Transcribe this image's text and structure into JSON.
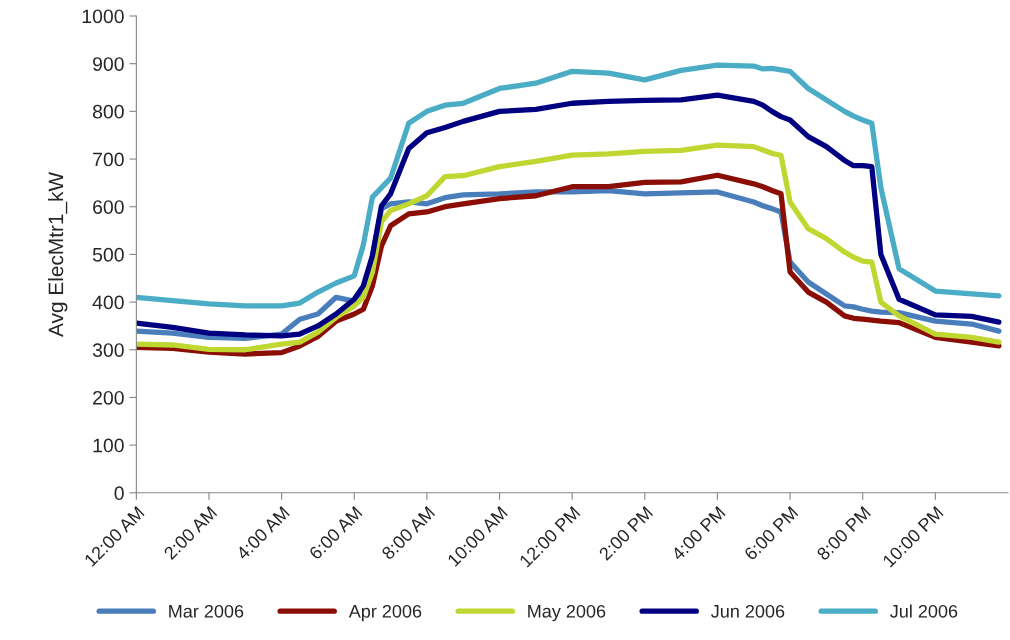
{
  "chart_data": {
    "type": "line",
    "ylabel": "Avg ElecMtr1_kW",
    "x": [
      0,
      1,
      2,
      3,
      4,
      4.5,
      5,
      5.5,
      6,
      6.25,
      6.5,
      6.75,
      7,
      7.5,
      8,
      8.5,
      9,
      10,
      11,
      12,
      13,
      14,
      15,
      16,
      17,
      17.25,
      17.5,
      17.75,
      18,
      18.5,
      19,
      19.5,
      19.75,
      20,
      20.25,
      20.5,
      21,
      22,
      23,
      23.75
    ],
    "series": [
      {
        "name": "Mar 2006",
        "color": "#4a7ebb",
        "values": [
          339,
          335,
          326,
          324,
          333,
          364,
          375,
          410,
          402,
          421,
          497,
          596,
          606,
          610,
          606,
          619,
          625,
          627,
          631,
          631,
          634,
          627,
          629,
          631,
          610,
          602,
          596,
          589,
          484,
          442,
          417,
          392,
          390,
          385,
          381,
          379,
          378,
          360,
          354,
          339
        ]
      },
      {
        "name": "Apr 2006",
        "color": "#8b0e04",
        "values": [
          305,
          303,
          295,
          291,
          294,
          308,
          328,
          360,
          375,
          385,
          434,
          518,
          560,
          585,
          589,
          600,
          606,
          617,
          623,
          642,
          642,
          651,
          652,
          666,
          648,
          642,
          634,
          627,
          463,
          421,
          400,
          371,
          366,
          364,
          362,
          360,
          357,
          326,
          316,
          308
        ]
      },
      {
        "name": "May 2006",
        "color": "#bfd730",
        "values": [
          312,
          310,
          301,
          300,
          312,
          316,
          337,
          368,
          392,
          410,
          463,
          568,
          592,
          606,
          623,
          663,
          665,
          684,
          695,
          708,
          711,
          716,
          718,
          729,
          726,
          719,
          712,
          708,
          610,
          554,
          533,
          505,
          494,
          486,
          484,
          400,
          371,
          333,
          326,
          316
        ]
      },
      {
        "name": "Jun 2006",
        "color": "#000080",
        "values": [
          356,
          347,
          335,
          331,
          329,
          333,
          350,
          375,
          406,
          434,
          497,
          602,
          627,
          722,
          755,
          766,
          779,
          800,
          804,
          817,
          821,
          823,
          824,
          834,
          821,
          813,
          800,
          789,
          782,
          747,
          726,
          697,
          686,
          686,
          684,
          500,
          406,
          373,
          370,
          358
        ]
      },
      {
        "name": "Jul 2006",
        "color": "#4bacc6",
        "values": [
          410,
          403,
          396,
          392,
          392,
          398,
          421,
          440,
          455,
          520,
          620,
          640,
          660,
          775,
          800,
          813,
          817,
          848,
          859,
          884,
          880,
          866,
          886,
          897,
          895,
          889,
          890,
          887,
          884,
          848,
          824,
          800,
          790,
          782,
          775,
          640,
          470,
          423,
          417,
          413
        ]
      }
    ],
    "xlim": [
      0,
      24
    ],
    "xticks": [
      {
        "value": 0,
        "label": "12:00 AM"
      },
      {
        "value": 2,
        "label": "2:00 AM"
      },
      {
        "value": 4,
        "label": "4:00 AM"
      },
      {
        "value": 6,
        "label": "6:00 AM"
      },
      {
        "value": 8,
        "label": "8:00 AM"
      },
      {
        "value": 10,
        "label": "10:00 AM"
      },
      {
        "value": 12,
        "label": "12:00 PM"
      },
      {
        "value": 14,
        "label": "2:00 PM"
      },
      {
        "value": 16,
        "label": "4:00 PM"
      },
      {
        "value": 18,
        "label": "6:00 PM"
      },
      {
        "value": 20,
        "label": "8:00 PM"
      },
      {
        "value": 22,
        "label": "10:00 PM"
      }
    ],
    "ylim": [
      0,
      1000
    ],
    "yticks": [
      0,
      100,
      200,
      300,
      400,
      500,
      600,
      700,
      800,
      900,
      1000
    ],
    "legend": "bottom",
    "grid": false,
    "marker": "none",
    "line_style": "solid"
  }
}
